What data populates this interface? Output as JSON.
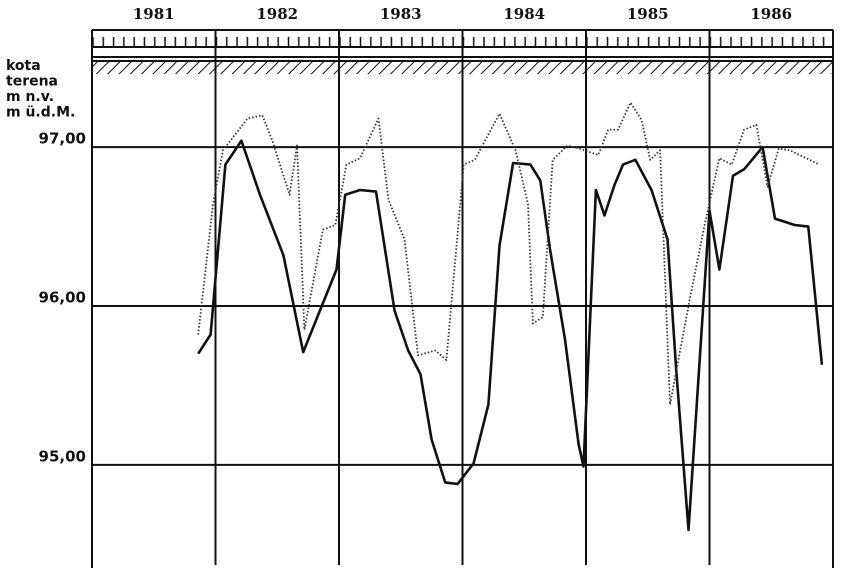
{
  "chart_data": {
    "type": "line",
    "ylabel": [
      "kota",
      "terena",
      "m n.v.",
      "m ü.d.M."
    ],
    "xlim": [
      1981,
      1987
    ],
    "xticks": [
      {
        "value": 1981.5,
        "label": "1981"
      },
      {
        "value": 1982.5,
        "label": "1982"
      },
      {
        "value": 1983.5,
        "label": "1983"
      },
      {
        "value": 1984.5,
        "label": "1984"
      },
      {
        "value": 1985.5,
        "label": "1985"
      },
      {
        "value": 1986.5,
        "label": "1986"
      }
    ],
    "xgrid": [
      1982,
      1983,
      1984,
      1985,
      1986
    ],
    "ylim": [
      94.37,
      97.63
    ],
    "yticks": [
      {
        "value": 95,
        "label": "95,00"
      },
      {
        "value": 96,
        "label": "96,00"
      },
      {
        "value": 97,
        "label": "97,00"
      }
    ],
    "grid": true,
    "series": [
      {
        "color": "#111111",
        "style": "solid",
        "x": [
          1981.86,
          1981.96,
          1982.08,
          1982.21,
          1982.36,
          1982.55,
          1982.71,
          1982.98,
          1983.05,
          1983.17,
          1983.3,
          1983.45,
          1983.56,
          1983.66,
          1983.75,
          1983.86,
          1983.96,
          1984.09,
          1984.21,
          1984.3,
          1984.41,
          1984.55,
          1984.63,
          1984.71,
          1984.83,
          1984.94,
          1984.98,
          1985.08,
          1985.15,
          1985.23,
          1985.3,
          1985.4,
          1985.53,
          1985.66,
          1985.73,
          1985.83,
          1986.0,
          1986.08,
          1986.19,
          1986.28,
          1986.43,
          1986.53,
          1986.69,
          1986.8,
          1986.91
        ],
        "values": [
          95.7,
          95.82,
          96.89,
          97.04,
          96.7,
          96.32,
          95.71,
          96.23,
          96.7,
          96.73,
          96.72,
          95.97,
          95.72,
          95.57,
          95.16,
          94.89,
          94.88,
          95.01,
          95.38,
          96.38,
          96.9,
          96.89,
          96.79,
          96.35,
          95.79,
          95.13,
          94.99,
          96.73,
          96.57,
          96.76,
          96.89,
          96.92,
          96.73,
          96.42,
          95.6,
          94.59,
          96.6,
          96.23,
          96.82,
          96.86,
          97.0,
          96.55,
          96.51,
          96.5,
          95.63
        ]
      },
      {
        "color": "#333333",
        "style": "dotted",
        "x": [
          1981.86,
          1981.98,
          1982.06,
          1982.26,
          1982.38,
          1982.46,
          1982.6,
          1982.66,
          1982.72,
          1982.87,
          1982.97,
          1983.06,
          1983.17,
          1983.32,
          1983.4,
          1983.53,
          1983.64,
          1983.78,
          1983.87,
          1984.01,
          1984.1,
          1984.3,
          1984.43,
          1984.53,
          1984.57,
          1984.65,
          1984.73,
          1984.85,
          1984.95,
          1985.1,
          1985.18,
          1985.26,
          1985.36,
          1985.45,
          1985.52,
          1985.6,
          1985.68,
          1985.84,
          1985.96,
          1986.08,
          1986.18,
          1986.28,
          1986.38,
          1986.47,
          1986.56,
          1986.65,
          1986.89
        ],
        "values": [
          95.82,
          96.64,
          96.98,
          97.18,
          97.2,
          97.04,
          96.7,
          97.01,
          95.85,
          96.48,
          96.51,
          96.89,
          96.93,
          97.18,
          96.67,
          96.42,
          95.69,
          95.72,
          95.66,
          96.89,
          96.92,
          97.21,
          96.98,
          96.64,
          95.89,
          95.93,
          96.92,
          97.01,
          96.99,
          96.95,
          97.11,
          97.11,
          97.28,
          97.17,
          96.92,
          96.98,
          95.38,
          96.04,
          96.51,
          96.93,
          96.89,
          97.11,
          97.14,
          96.75,
          96.99,
          96.98,
          96.89
        ]
      }
    ]
  }
}
